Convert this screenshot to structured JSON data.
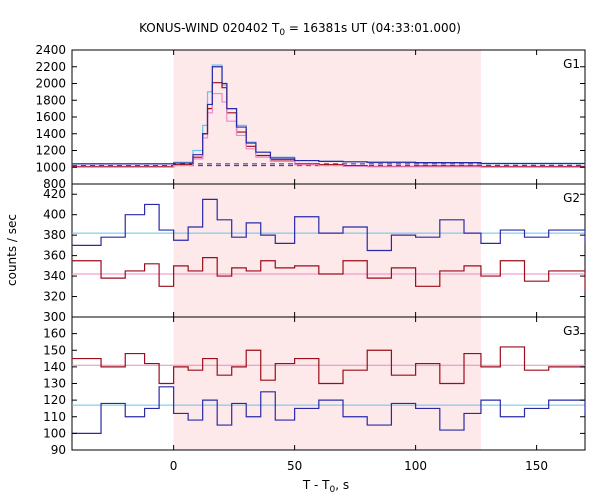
{
  "chart_data": {
    "type": "line",
    "title_main": "KONUS-WIND 020402 T",
    "title_sub": "0",
    "title_rest": " = 16381s UT (04:33:01.000)",
    "xlabel_main": "T - T",
    "xlabel_sub": "0",
    "xlabel_rest": ", s",
    "ylabel": "counts / sec",
    "xlim": [
      -42,
      170
    ],
    "x_ticks": [
      0,
      50,
      100,
      150
    ],
    "x_tick_labels": [
      "0",
      "50",
      "100",
      "150"
    ],
    "shaded_interval": [
      0,
      127
    ],
    "colors": {
      "shade": "#fde8ea",
      "dark_red": "#9b0d1a",
      "dark_blue": "#2a2aa8",
      "light_blue": "#66c4e6",
      "pink": "#ee88c4"
    },
    "panels": [
      {
        "label": "G1",
        "ylim": [
          800,
          2400
        ],
        "y_ticks": [
          800,
          1000,
          1200,
          1400,
          1600,
          1800,
          2000,
          2200,
          2400
        ],
        "y_tick_labels": [
          "800",
          "1000",
          "1200",
          "1400",
          "1600",
          "1800",
          "2000",
          "2200",
          "2400"
        ],
        "baselines": [
          {
            "name": "bg-dark-blue",
            "value": 1040
          },
          {
            "name": "bg-dark-red",
            "value": 1020
          }
        ],
        "series": [
          {
            "key": "light-blue",
            "x": [
              -42,
              0,
              8,
              12,
              14,
              16,
              20,
              22,
              26,
              30,
              34,
              40,
              50,
              60,
              70,
              80,
              100,
              127,
              170
            ],
            "y": [
              1040,
              1060,
              1200,
              1500,
              1900,
              2220,
              1980,
              1700,
              1500,
              1300,
              1180,
              1120,
              1080,
              1070,
              1065,
              1055,
              1050,
              1045,
              1040
            ]
          },
          {
            "key": "dark-red",
            "x": [
              -42,
              0,
              8,
              12,
              14,
              16,
              20,
              22,
              26,
              30,
              34,
              40,
              50,
              60,
              70,
              80,
              100,
              127,
              170
            ],
            "y": [
              1010,
              1030,
              1120,
              1400,
              1700,
              2010,
              1950,
              1650,
              1420,
              1250,
              1140,
              1090,
              1040,
              1030,
              1020,
              1010,
              1015,
              1010,
              1030
            ]
          },
          {
            "key": "pink",
            "x": [
              -42,
              0,
              8,
              12,
              14,
              16,
              20,
              22,
              26,
              30,
              34,
              40,
              50,
              60,
              70,
              80,
              100,
              127,
              170
            ],
            "y": [
              1000,
              1020,
              1100,
              1350,
              1650,
              1880,
              1780,
              1550,
              1380,
              1220,
              1120,
              1070,
              1030,
              1020,
              1010,
              1005,
              1005,
              1000,
              1000
            ]
          },
          {
            "key": "dark-blue",
            "x": [
              -42,
              0,
              8,
              12,
              14,
              16,
              20,
              22,
              26,
              30,
              34,
              40,
              50,
              60,
              70,
              80,
              100,
              127,
              170
            ],
            "y": [
              1040,
              1050,
              1150,
              1400,
              1750,
              2200,
              2000,
              1700,
              1480,
              1290,
              1180,
              1110,
              1080,
              1070,
              1065,
              1060,
              1055,
              1045,
              1050
            ]
          }
        ]
      },
      {
        "label": "G2",
        "ylim": [
          300,
          430
        ],
        "y_ticks": [
          300,
          320,
          340,
          360,
          380,
          400,
          420
        ],
        "y_tick_labels": [
          "300",
          "320",
          "340",
          "360",
          "380",
          "400",
          "420"
        ],
        "baselines": [
          {
            "name": "bg-light-blue",
            "value": 382
          },
          {
            "name": "bg-pink",
            "value": 342
          }
        ],
        "series": [
          {
            "key": "dark-blue",
            "x": [
              -42,
              -30,
              -20,
              -12,
              -6,
              0,
              6,
              12,
              18,
              24,
              30,
              36,
              42,
              50,
              60,
              70,
              80,
              90,
              100,
              110,
              120,
              127,
              135,
              145,
              155,
              170
            ],
            "y": [
              370,
              378,
              400,
              410,
              385,
              375,
              388,
              415,
              395,
              378,
              392,
              380,
              372,
              398,
              382,
              388,
              365,
              380,
              378,
              395,
              382,
              372,
              385,
              378,
              385,
              372
            ]
          },
          {
            "key": "dark-red",
            "x": [
              -42,
              -30,
              -20,
              -12,
              -6,
              0,
              6,
              12,
              18,
              24,
              30,
              36,
              42,
              50,
              60,
              70,
              80,
              90,
              100,
              110,
              120,
              127,
              135,
              145,
              155,
              170
            ],
            "y": [
              355,
              338,
              345,
              352,
              330,
              350,
              345,
              358,
              340,
              348,
              345,
              355,
              348,
              350,
              342,
              355,
              338,
              348,
              330,
              345,
              350,
              340,
              355,
              335,
              345,
              325
            ]
          }
        ]
      },
      {
        "label": "G3",
        "ylim": [
          90,
          170
        ],
        "y_ticks": [
          90,
          100,
          110,
          120,
          130,
          140,
          150,
          160
        ],
        "y_tick_labels": [
          "90",
          "100",
          "110",
          "120",
          "130",
          "140",
          "150",
          "160"
        ],
        "baselines": [
          {
            "name": "bg-pink",
            "value": 141
          },
          {
            "name": "bg-light-blue",
            "value": 117
          }
        ],
        "series": [
          {
            "key": "dark-red",
            "x": [
              -42,
              -30,
              -20,
              -12,
              -6,
              0,
              6,
              12,
              18,
              24,
              30,
              36,
              42,
              50,
              60,
              70,
              80,
              90,
              100,
              110,
              120,
              127,
              135,
              145,
              155,
              170
            ],
            "y": [
              145,
              140,
              148,
              142,
              130,
              140,
              138,
              145,
              135,
              140,
              150,
              132,
              142,
              145,
              130,
              138,
              150,
              135,
              142,
              130,
              148,
              140,
              152,
              138,
              140,
              140
            ]
          },
          {
            "key": "dark-blue",
            "x": [
              -42,
              -30,
              -20,
              -12,
              -6,
              0,
              6,
              12,
              18,
              24,
              30,
              36,
              42,
              50,
              60,
              70,
              80,
              90,
              100,
              110,
              120,
              127,
              135,
              145,
              155,
              170
            ],
            "y": [
              100,
              118,
              110,
              115,
              128,
              112,
              108,
              120,
              105,
              118,
              110,
              125,
              108,
              115,
              120,
              110,
              105,
              118,
              115,
              102,
              112,
              120,
              110,
              115,
              120,
              112
            ]
          }
        ]
      }
    ]
  }
}
